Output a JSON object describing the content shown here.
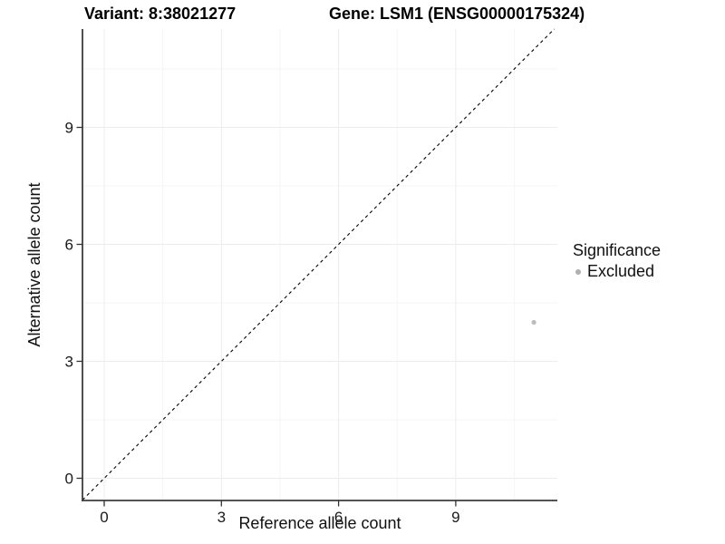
{
  "titles": {
    "variant": "Variant: 8:38021277",
    "gene": "Gene: LSM1 (ENSG00000175324)"
  },
  "legend": {
    "title": "Significance",
    "items": [
      {
        "label": "Excluded",
        "color": "#b0b0b0",
        "marker": "dot-icon"
      }
    ]
  },
  "axes": {
    "x_label": "Reference allele count",
    "y_label": "Alternative allele count",
    "x_tick_labels": [
      "0",
      "3",
      "6",
      "9"
    ],
    "y_tick_labels": [
      "0",
      "3",
      "6",
      "9"
    ]
  },
  "colors": {
    "background": "#ffffff",
    "axis_line": "#3d3d3d",
    "tick_label": "#1a1a1a",
    "grid_major": "#ececec",
    "grid_minor": "#f5f5f5",
    "reference_line": "#000000",
    "excluded_point": "#bdbdbd"
  },
  "chart_data": {
    "type": "scatter",
    "title": "Variant: 8:38021277 / Gene: LSM1 (ENSG00000175324)",
    "xlabel": "Reference allele count",
    "ylabel": "Alternative allele count",
    "xlim": [
      -0.56,
      11.6
    ],
    "ylim": [
      -0.57,
      11.52
    ],
    "x_ticks": [
      0,
      3,
      6,
      9
    ],
    "y_ticks": [
      0,
      3,
      6,
      9
    ],
    "x_minor_ticks": [
      1.5,
      4.5,
      7.5,
      10.5
    ],
    "y_minor_ticks": [
      1.5,
      4.5,
      7.5,
      10.5
    ],
    "grid": true,
    "legend_position": "right",
    "legend_title": "Significance",
    "series": [
      {
        "name": "Excluded",
        "color": "#bdbdbd",
        "points": [
          {
            "x": 11,
            "y": 4
          }
        ]
      }
    ],
    "reference_line": {
      "kind": "identity y=x",
      "style": "dashed",
      "color": "#000000",
      "slope": 1,
      "intercept": 0
    }
  }
}
